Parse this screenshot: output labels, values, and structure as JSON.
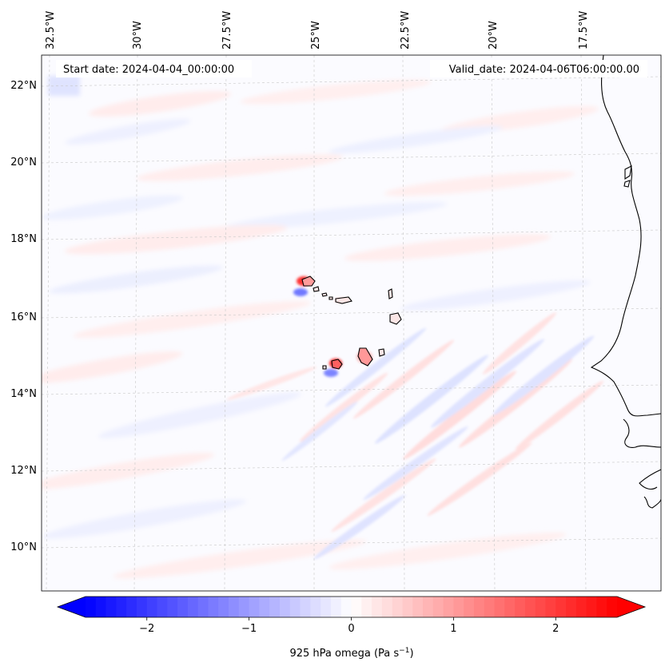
{
  "title_left": "Start date: 2024-04-04_00:00:00",
  "title_right": "Valid_date: 2024-04-06T06:00:00.00",
  "lon_labels": [
    "32.5°W",
    "30°W",
    "27.5°W",
    "25°W",
    "22.5°W",
    "20°W",
    "17.5°W"
  ],
  "lat_labels": [
    "22°N",
    "20°N",
    "18°N",
    "16°N",
    "14°N",
    "12°N",
    "10°N"
  ],
  "colorbar": {
    "ticks": [
      "−2",
      "−1",
      "0",
      "1",
      "2"
    ],
    "tick_values": [
      -2,
      -1,
      0,
      1,
      2
    ],
    "vmin": -2.6,
    "vmax": 2.6,
    "label_main": "925 hPa omega (Pa s",
    "label_sup": "−1",
    "label_close": ")",
    "color_low": "#0000ff",
    "color_mid": "#ffffff",
    "color_high": "#ff0000"
  }
}
